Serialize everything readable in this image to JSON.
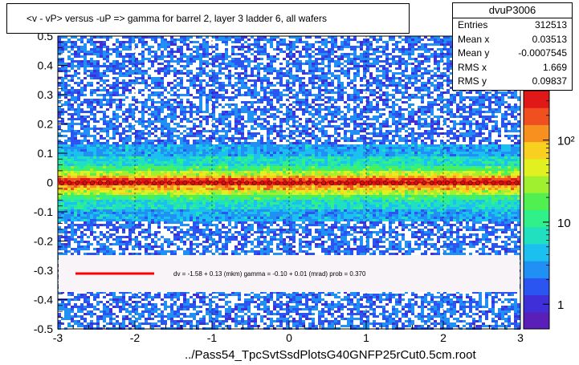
{
  "chart_data": {
    "type": "heatmap",
    "title": "<v - vP>       versus  -uP =>  gamma for barrel 2, layer 3 ladder 6, all wafers",
    "xlabel": "../Pass54_TpcSvtSsdPlotsG40GNFP25rCut0.5cm.root",
    "ylabel": "",
    "xlim": [
      -3,
      3
    ],
    "ylim": [
      -0.5,
      0.5
    ],
    "x_ticks": [
      "-3",
      "-2",
      "-1",
      "0",
      "1",
      "2",
      "3"
    ],
    "y_ticks": [
      "-0.5",
      "-0.4",
      "-0.3",
      "-0.2",
      "-0.1",
      "0",
      "0.1",
      "0.2",
      "0.3",
      "0.4",
      "0.5"
    ],
    "colorbar": {
      "scale": "log",
      "tick_labels": [
        "1",
        "10",
        "10²"
      ],
      "range": [
        0.5,
        400
      ]
    },
    "profile": {
      "y_value": 0.0,
      "color": "#cc0000"
    },
    "fit": {
      "label": "dv =   -1.58 +  0.13 (mkm) gamma =   -0.10 +  0.01 (mrad) prob = 0.370",
      "color": "#ff0000"
    }
  },
  "stats": {
    "name": "dvuP3006",
    "rows": [
      {
        "label": "Entries",
        "value": "312513"
      },
      {
        "label": "Mean x",
        "value": "0.03513"
      },
      {
        "label": "Mean y",
        "value": "-0.0007545"
      },
      {
        "label": "RMS x",
        "value": "1.669"
      },
      {
        "label": "RMS y",
        "value": "0.09837"
      }
    ]
  }
}
